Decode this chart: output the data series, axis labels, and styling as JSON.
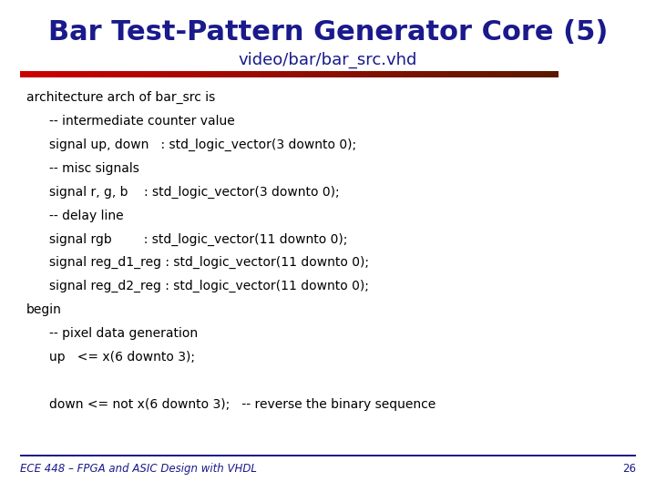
{
  "title": "Bar Test-Pattern Generator Core (5)",
  "subtitle": "video/bar/bar_src.vhd",
  "title_color": "#1a1a8c",
  "subtitle_color": "#1a1a8c",
  "bg_color": "#ffffff",
  "divider_color_left": "#cc0000",
  "divider_color_right": "#5a1a00",
  "footer_line_color": "#1a1a8c",
  "footer_text": "ECE 448 – FPGA and ASIC Design with VHDL",
  "footer_page": "26",
  "footer_color": "#1a1a8c",
  "code_lines": [
    {
      "text": "architecture arch of bar_src is",
      "indent": 0
    },
    {
      "text": "-- intermediate counter value",
      "indent": 1
    },
    {
      "text": "signal up, down   : std_logic_vector(3 downto 0);",
      "indent": 1
    },
    {
      "text": "-- misc signals",
      "indent": 1
    },
    {
      "text": "signal r, g, b    : std_logic_vector(3 downto 0);",
      "indent": 1
    },
    {
      "text": "-- delay line",
      "indent": 1
    },
    {
      "text": "signal rgb        : std_logic_vector(11 downto 0);",
      "indent": 1
    },
    {
      "text": "signal reg_d1_reg : std_logic_vector(11 downto 0);",
      "indent": 1
    },
    {
      "text": "signal reg_d2_reg : std_logic_vector(11 downto 0);",
      "indent": 1
    },
    {
      "text": "begin",
      "indent": 0
    },
    {
      "text": "-- pixel data generation",
      "indent": 1
    },
    {
      "text": "up   <= x(6 downto 3);",
      "indent": 1
    },
    {
      "text": "",
      "indent": 0
    },
    {
      "text": "down <= not x(6 downto 3);   -- reverse the binary sequence",
      "indent": 1
    }
  ],
  "code_color": "#000000",
  "code_fontsize": 10.0,
  "title_fontsize": 22,
  "subtitle_fontsize": 13
}
